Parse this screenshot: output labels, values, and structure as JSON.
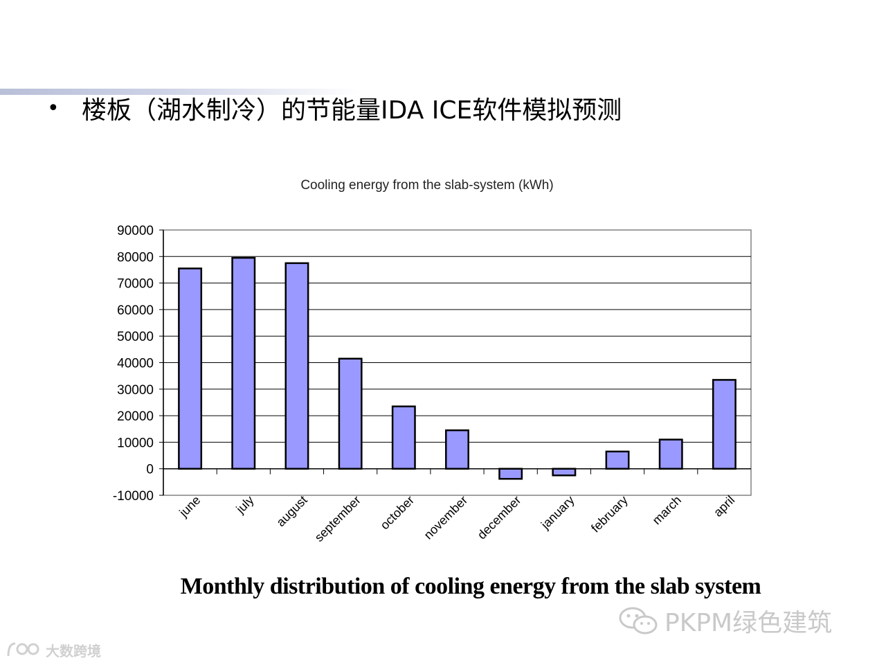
{
  "slide": {
    "bullet": "•",
    "title": "楼板（湖水制冷）的节能量IDA ICE软件模拟预测"
  },
  "chart_data": {
    "type": "bar",
    "title": "Cooling energy from the slab-system (kWh)",
    "xlabel": "",
    "ylabel": "",
    "categories": [
      "june",
      "july",
      "august",
      "september",
      "october",
      "november",
      "december",
      "january",
      "february",
      "march",
      "april"
    ],
    "values": [
      75500,
      79500,
      77500,
      41500,
      23500,
      14500,
      -3800,
      -2500,
      6500,
      11000,
      33500
    ],
    "ylim": [
      -10000,
      90000
    ],
    "yticks": [
      90000,
      80000,
      70000,
      60000,
      50000,
      40000,
      30000,
      20000,
      10000,
      0,
      -10000
    ],
    "grid": true,
    "bar_color": "#9999ff",
    "legend": "none"
  },
  "caption": "Monthly distribution of cooling energy from the slab system",
  "watermarks": {
    "right": "PKPM绿色建筑",
    "left": "大数跨境"
  }
}
